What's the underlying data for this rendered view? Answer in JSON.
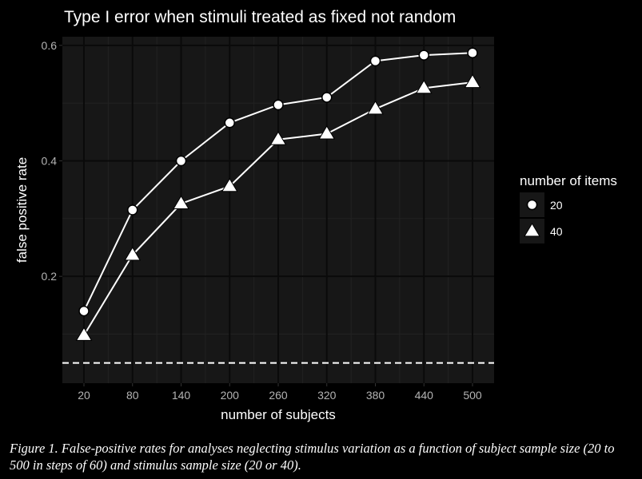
{
  "chart_data": {
    "type": "line",
    "title": "Type I error when stimuli treated as fixed not random",
    "xlabel": "number of subjects",
    "ylabel": "false positive rate",
    "x": [
      20,
      80,
      140,
      200,
      260,
      320,
      380,
      440,
      500
    ],
    "x_tick_labels": [
      "20",
      "80",
      "140",
      "200",
      "260",
      "320",
      "380",
      "440",
      "500"
    ],
    "y_ticks": [
      0.2,
      0.4,
      0.6
    ],
    "y_tick_labels": [
      "0.2",
      "0.4",
      "0.6"
    ],
    "ylim": [
      0.015,
      0.615
    ],
    "reference_line": {
      "y": 0.05,
      "style": "dashed"
    },
    "grid": true,
    "legend": {
      "title": "number of items",
      "position": "right"
    },
    "series": [
      {
        "name": "20",
        "marker": "circle",
        "values": [
          0.14,
          0.315,
          0.4,
          0.466,
          0.497,
          0.51,
          0.573,
          0.583,
          0.587
        ]
      },
      {
        "name": "40",
        "marker": "triangle",
        "values": [
          0.098,
          0.237,
          0.326,
          0.356,
          0.437,
          0.447,
          0.49,
          0.526,
          0.536
        ]
      }
    ],
    "colors": {
      "panel": "#171717",
      "grid_major": "#0a0a0a",
      "grid_minor": "#222222",
      "line": "#ffffff"
    }
  },
  "caption": "Figure 1. False-positive rates for analyses neglecting stimulus variation as a function of subject sample size (20 to 500 in steps of 60) and stimulus sample size (20 or 40)."
}
